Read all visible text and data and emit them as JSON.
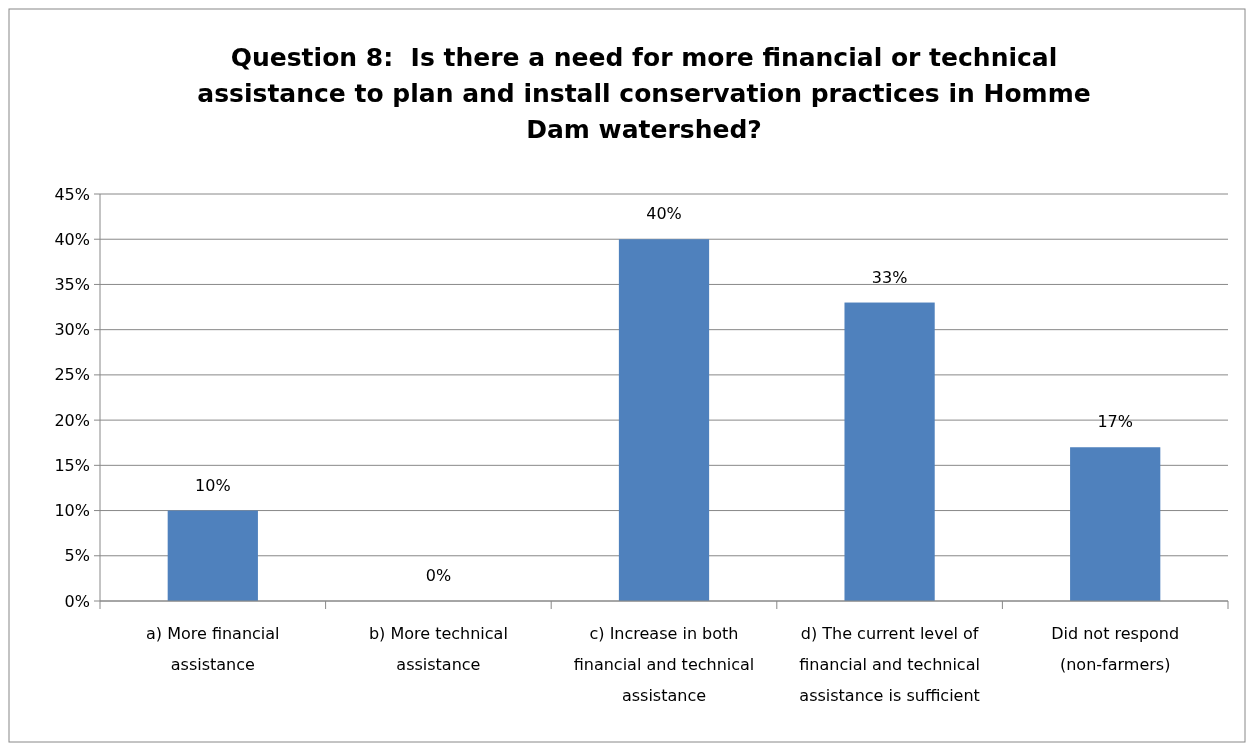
{
  "chart_data": {
    "type": "bar",
    "title": "Question 8:  Is there a need for more financial or technical assistance to plan and install conservation practices in Homme Dam watershed?",
    "categories": [
      "a)  More financial assistance",
      "b) More technical assistance",
      "c) Increase in both financial and technical assistance",
      "d)  The current level of financial and technical assistance is sufficient",
      "Did not respond (non-farmers)"
    ],
    "values": [
      10,
      0,
      40,
      33,
      17
    ],
    "value_labels": [
      "10%",
      "0%",
      "40%",
      "33%",
      "17%"
    ],
    "color": "#4f81bd",
    "ylim": [
      0,
      45
    ],
    "yticks": [
      {
        "value": 0,
        "label": "0%"
      },
      {
        "value": 5,
        "label": "5%"
      },
      {
        "value": 10,
        "label": "10%"
      },
      {
        "value": 15,
        "label": "15%"
      },
      {
        "value": 20,
        "label": "20%"
      },
      {
        "value": 25,
        "label": "25%"
      },
      {
        "value": 30,
        "label": "30%"
      },
      {
        "value": 35,
        "label": "35%"
      },
      {
        "value": 40,
        "label": "40%"
      },
      {
        "value": 45,
        "label": "45%"
      }
    ],
    "grid": "y"
  }
}
